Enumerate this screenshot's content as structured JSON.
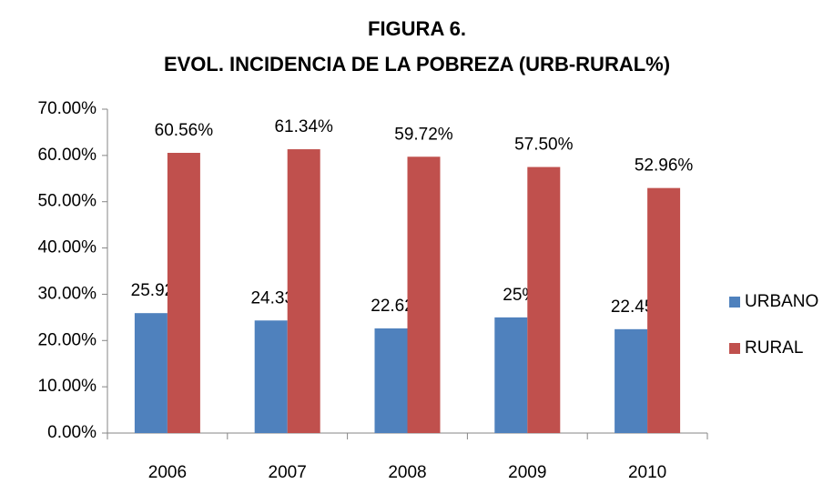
{
  "chart_data": {
    "type": "bar",
    "title": "FIGURA 6.",
    "subtitle": "EVOL. INCIDENCIA DE LA POBREZA (URB-RURAL%)",
    "categories": [
      "2006",
      "2007",
      "2008",
      "2009",
      "2010"
    ],
    "series": [
      {
        "name": "URBANO",
        "color": "#4f81bd",
        "values": [
          25.92,
          24.33,
          22.62,
          25,
          22.45
        ],
        "value_labels": [
          "25.92%",
          "24.33%",
          "22.62%",
          "25%",
          "22.45%"
        ]
      },
      {
        "name": "RURAL",
        "color": "#c0504d",
        "values": [
          60.56,
          61.34,
          59.72,
          57.5,
          52.96
        ],
        "value_labels": [
          "60.56%",
          "61.34%",
          "59.72%",
          "57.50%",
          "52.96%"
        ]
      }
    ],
    "ylim": [
      0,
      70
    ],
    "yticks": [
      {
        "value": 0,
        "label": "0.00%"
      },
      {
        "value": 10,
        "label": "10.00%"
      },
      {
        "value": 20,
        "label": "20.00%"
      },
      {
        "value": 30,
        "label": "30.00%"
      },
      {
        "value": 40,
        "label": "40.00%"
      },
      {
        "value": 50,
        "label": "50.00%"
      },
      {
        "value": 60,
        "label": "60.00%"
      },
      {
        "value": 70,
        "label": "70.00%"
      }
    ],
    "grid": false,
    "legend": "right"
  }
}
